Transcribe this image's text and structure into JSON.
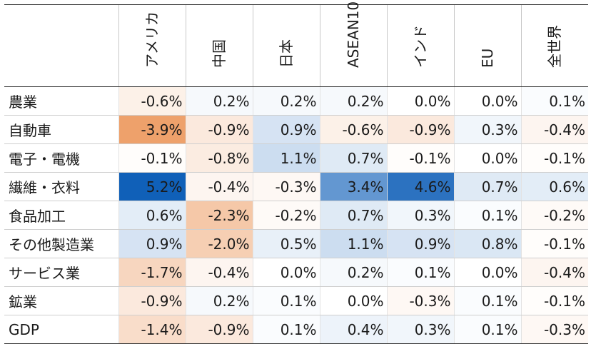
{
  "chart_data": {
    "type": "heatmap",
    "columns": [
      "アメリカ",
      "中国",
      "日本",
      "ASEAN10",
      "インド",
      "EU",
      "全世界"
    ],
    "rows": [
      {
        "label": "農業",
        "values": [
          -0.6,
          0.2,
          0.2,
          0.2,
          0.0,
          0.0,
          0.1
        ]
      },
      {
        "label": "自動車",
        "values": [
          -3.9,
          -0.9,
          0.9,
          -0.6,
          -0.9,
          0.3,
          -0.4
        ]
      },
      {
        "label": "電子・電機",
        "values": [
          -0.1,
          -0.8,
          1.1,
          0.7,
          -0.1,
          0.0,
          -0.1
        ]
      },
      {
        "label": "繊維・衣料",
        "values": [
          5.2,
          -0.4,
          -0.3,
          3.4,
          4.6,
          0.7,
          0.6
        ]
      },
      {
        "label": "食品加工",
        "values": [
          0.6,
          -2.3,
          -0.2,
          0.7,
          0.3,
          0.1,
          -0.2
        ]
      },
      {
        "label": "その他製造業",
        "values": [
          0.9,
          -2.0,
          0.5,
          1.1,
          0.9,
          0.8,
          -0.1
        ]
      },
      {
        "label": "サービス業",
        "values": [
          -1.7,
          -0.4,
          0.0,
          0.2,
          0.1,
          0.0,
          -0.4
        ]
      },
      {
        "label": "鉱業",
        "values": [
          -0.9,
          0.2,
          0.1,
          0.0,
          -0.3,
          0.1,
          -0.1
        ]
      },
      {
        "label": "GDP",
        "values": [
          -1.4,
          -0.9,
          0.1,
          0.4,
          0.3,
          0.1,
          -0.3
        ]
      }
    ],
    "value_format": "percent, one decimal",
    "color_scale": {
      "negative": "#e8823a",
      "zero": "#ffffff",
      "positive": "#1060b8"
    }
  }
}
